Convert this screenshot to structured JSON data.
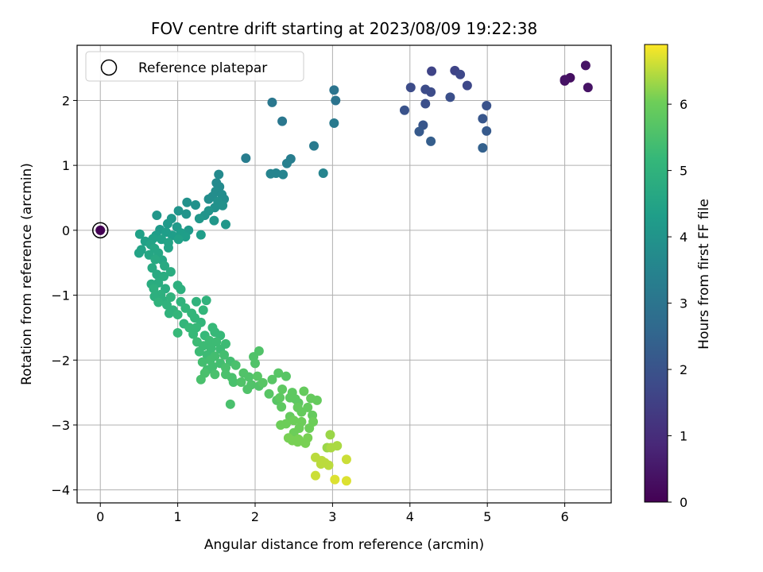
{
  "chart_data": {
    "type": "scatter",
    "title": "FOV centre drift starting at 2023/08/09 19:22:38",
    "xlabel": "Angular distance from reference (arcmin)",
    "ylabel": "Rotation from reference (arcmin)",
    "xlim": [
      -0.3,
      6.6
    ],
    "ylim": [
      -4.2,
      2.85
    ],
    "xticks": [
      0,
      1,
      2,
      3,
      4,
      5,
      6
    ],
    "yticks": [
      -4,
      -3,
      -2,
      -1,
      0,
      1,
      2
    ],
    "grid": true,
    "legend": {
      "placement": "top-left",
      "entries": [
        "Reference platepar"
      ]
    },
    "colorbar": {
      "label": "Hours from first FF file",
      "range": [
        0,
        6.9
      ],
      "ticks": [
        0,
        1,
        2,
        3,
        4,
        5,
        6
      ],
      "colormap": "viridis"
    },
    "reference_point": {
      "x": 0,
      "y": 0,
      "t": 0
    },
    "series": [
      {
        "points": [
          [
            6.0,
            2.3,
            0.3
          ],
          [
            6.07,
            2.35,
            0.3
          ],
          [
            6.27,
            2.54,
            0.4
          ],
          [
            6.3,
            2.2,
            0.4
          ],
          [
            6.0,
            2.32,
            0.4
          ],
          [
            4.28,
            2.45,
            1.6
          ],
          [
            4.58,
            2.46,
            1.6
          ],
          [
            4.65,
            2.4,
            1.7
          ],
          [
            4.74,
            2.23,
            1.7
          ],
          [
            4.01,
            2.2,
            1.8
          ],
          [
            4.2,
            2.17,
            1.8
          ],
          [
            4.27,
            2.13,
            1.8
          ],
          [
            4.52,
            2.05,
            1.9
          ],
          [
            4.2,
            1.95,
            1.9
          ],
          [
            4.99,
            1.92,
            2.0
          ],
          [
            3.93,
            1.85,
            2.0
          ],
          [
            4.94,
            1.72,
            2.1
          ],
          [
            4.17,
            1.62,
            2.1
          ],
          [
            4.12,
            1.52,
            2.2
          ],
          [
            4.99,
            1.53,
            2.2
          ],
          [
            4.27,
            1.37,
            2.3
          ],
          [
            4.94,
            1.27,
            2.4
          ],
          [
            3.02,
            2.16,
            3.0
          ],
          [
            3.04,
            2.0,
            3.0
          ],
          [
            2.22,
            1.97,
            3.1
          ],
          [
            2.35,
            1.68,
            3.1
          ],
          [
            3.02,
            1.65,
            3.2
          ],
          [
            2.76,
            1.3,
            3.2
          ],
          [
            1.88,
            1.11,
            3.3
          ],
          [
            2.46,
            1.1,
            3.3
          ],
          [
            2.41,
            1.03,
            3.4
          ],
          [
            2.88,
            0.88,
            3.5
          ],
          [
            2.2,
            0.87,
            3.5
          ],
          [
            2.27,
            0.88,
            3.5
          ],
          [
            2.36,
            0.86,
            3.5
          ],
          [
            1.53,
            0.86,
            3.7
          ],
          [
            1.5,
            0.73,
            3.7
          ],
          [
            1.54,
            0.67,
            3.7
          ],
          [
            1.49,
            0.6,
            3.8
          ],
          [
            1.57,
            0.55,
            3.8
          ],
          [
            1.45,
            0.52,
            3.8
          ],
          [
            1.4,
            0.48,
            3.8
          ],
          [
            1.6,
            0.48,
            3.8
          ],
          [
            1.52,
            0.44,
            3.9
          ],
          [
            1.12,
            0.43,
            3.9
          ],
          [
            1.23,
            0.39,
            3.9
          ],
          [
            1.58,
            0.38,
            3.9
          ],
          [
            1.48,
            0.35,
            3.9
          ],
          [
            1.4,
            0.3,
            4.0
          ],
          [
            1.01,
            0.3,
            4.0
          ],
          [
            1.11,
            0.25,
            4.0
          ],
          [
            1.35,
            0.23,
            4.0
          ],
          [
            0.73,
            0.23,
            4.1
          ],
          [
            1.28,
            0.18,
            4.1
          ],
          [
            1.47,
            0.15,
            4.1
          ],
          [
            1.62,
            0.09,
            4.1
          ],
          [
            0.92,
            0.18,
            4.1
          ],
          [
            0.87,
            0.1,
            4.2
          ],
          [
            0.99,
            0.05,
            4.2
          ],
          [
            1.14,
            0.0,
            4.2
          ],
          [
            0.77,
            0.01,
            4.2
          ],
          [
            0.85,
            -0.03,
            4.3
          ],
          [
            1.04,
            -0.04,
            4.3
          ],
          [
            0.93,
            -0.08,
            4.3
          ],
          [
            1.3,
            -0.07,
            4.3
          ],
          [
            1.1,
            -0.1,
            4.3
          ],
          [
            0.72,
            -0.08,
            4.3
          ],
          [
            1.01,
            -0.14,
            4.4
          ],
          [
            0.51,
            -0.06,
            4.4
          ],
          [
            0.68,
            -0.13,
            4.4
          ],
          [
            0.79,
            -0.14,
            4.4
          ],
          [
            0.58,
            -0.17,
            4.4
          ],
          [
            0.88,
            -0.19,
            4.5
          ],
          [
            0.65,
            -0.22,
            4.5
          ],
          [
            0.88,
            -0.27,
            4.5
          ],
          [
            0.53,
            -0.3,
            4.5
          ],
          [
            0.5,
            -0.35,
            4.5
          ],
          [
            0.7,
            -0.28,
            4.6
          ],
          [
            0.63,
            -0.38,
            4.6
          ],
          [
            0.75,
            -0.35,
            4.6
          ],
          [
            0.8,
            -0.46,
            4.6
          ],
          [
            0.71,
            -0.45,
            4.7
          ],
          [
            0.83,
            -0.55,
            4.7
          ],
          [
            0.67,
            -0.58,
            4.7
          ],
          [
            0.73,
            -0.68,
            4.7
          ],
          [
            0.82,
            -0.71,
            4.8
          ],
          [
            0.91,
            -0.64,
            4.8
          ],
          [
            0.66,
            -0.83,
            4.8
          ],
          [
            0.75,
            -0.81,
            4.8
          ],
          [
            0.84,
            -0.9,
            4.8
          ],
          [
            0.69,
            -0.9,
            4.9
          ],
          [
            0.78,
            -0.99,
            4.9
          ],
          [
            1.0,
            -0.85,
            4.9
          ],
          [
            1.04,
            -0.91,
            4.9
          ],
          [
            0.7,
            -1.02,
            4.9
          ],
          [
            0.8,
            -1.07,
            4.9
          ],
          [
            0.91,
            -1.03,
            5.0
          ],
          [
            0.75,
            -1.11,
            5.0
          ],
          [
            0.86,
            -1.15,
            5.0
          ],
          [
            1.04,
            -1.1,
            5.0
          ],
          [
            0.94,
            -1.23,
            5.0
          ],
          [
            0.89,
            -1.28,
            5.0
          ],
          [
            1.24,
            -1.1,
            5.0
          ],
          [
            1.37,
            -1.08,
            5.0
          ],
          [
            1.1,
            -1.2,
            5.1
          ],
          [
            1.18,
            -1.28,
            5.1
          ],
          [
            1.33,
            -1.23,
            5.1
          ],
          [
            1.0,
            -1.3,
            5.1
          ],
          [
            1.22,
            -1.35,
            5.1
          ],
          [
            1.3,
            -1.42,
            5.1
          ],
          [
            1.08,
            -1.44,
            5.1
          ],
          [
            1.15,
            -1.5,
            5.2
          ],
          [
            1.24,
            -1.5,
            5.2
          ],
          [
            1.45,
            -1.5,
            5.2
          ],
          [
            1.0,
            -1.58,
            5.2
          ],
          [
            1.2,
            -1.6,
            5.2
          ],
          [
            1.35,
            -1.62,
            5.2
          ],
          [
            1.48,
            -1.57,
            5.2
          ],
          [
            1.55,
            -1.62,
            5.2
          ],
          [
            1.41,
            -1.7,
            5.3
          ],
          [
            1.25,
            -1.72,
            5.3
          ],
          [
            1.5,
            -1.72,
            5.3
          ],
          [
            1.62,
            -1.75,
            5.3
          ],
          [
            1.33,
            -1.78,
            5.3
          ],
          [
            1.43,
            -1.82,
            5.3
          ],
          [
            1.55,
            -1.83,
            5.3
          ],
          [
            1.28,
            -1.87,
            5.3
          ],
          [
            1.38,
            -1.92,
            5.3
          ],
          [
            1.48,
            -1.94,
            5.4
          ],
          [
            1.6,
            -1.92,
            5.4
          ],
          [
            1.42,
            -2.0,
            5.4
          ],
          [
            1.32,
            -2.03,
            5.4
          ],
          [
            1.55,
            -2.05,
            5.4
          ],
          [
            1.68,
            -2.02,
            5.4
          ],
          [
            1.45,
            -2.1,
            5.4
          ],
          [
            1.38,
            -2.15,
            5.4
          ],
          [
            1.62,
            -2.12,
            5.5
          ],
          [
            1.75,
            -2.08,
            5.5
          ],
          [
            1.35,
            -2.2,
            5.5
          ],
          [
            1.48,
            -2.22,
            5.5
          ],
          [
            1.3,
            -2.3,
            5.5
          ],
          [
            1.7,
            -2.27,
            5.5
          ],
          [
            1.62,
            -2.22,
            5.5
          ],
          [
            1.72,
            -2.34,
            5.5
          ],
          [
            1.68,
            -2.68,
            5.5
          ],
          [
            1.85,
            -2.2,
            5.6
          ],
          [
            1.92,
            -2.26,
            5.6
          ],
          [
            1.98,
            -1.95,
            5.6
          ],
          [
            2.05,
            -1.86,
            5.6
          ],
          [
            2.0,
            -2.05,
            5.6
          ],
          [
            1.82,
            -2.34,
            5.6
          ],
          [
            1.95,
            -2.38,
            5.6
          ],
          [
            2.05,
            -2.4,
            5.6
          ],
          [
            1.9,
            -2.45,
            5.6
          ],
          [
            2.1,
            -2.35,
            5.7
          ],
          [
            2.03,
            -2.25,
            5.7
          ],
          [
            2.22,
            -2.3,
            5.7
          ],
          [
            2.18,
            -2.52,
            5.7
          ],
          [
            2.28,
            -2.62,
            5.7
          ],
          [
            2.3,
            -2.2,
            5.7
          ],
          [
            2.4,
            -2.25,
            5.7
          ],
          [
            2.35,
            -2.45,
            5.8
          ],
          [
            2.32,
            -2.58,
            5.8
          ],
          [
            2.48,
            -2.5,
            5.8
          ],
          [
            2.45,
            -2.58,
            5.8
          ],
          [
            2.52,
            -2.6,
            5.8
          ],
          [
            2.56,
            -2.66,
            5.8
          ],
          [
            2.34,
            -2.72,
            5.8
          ],
          [
            2.55,
            -2.73,
            5.9
          ],
          [
            2.63,
            -2.48,
            5.9
          ],
          [
            2.72,
            -2.59,
            5.9
          ],
          [
            2.8,
            -2.62,
            5.9
          ],
          [
            2.6,
            -2.8,
            5.9
          ],
          [
            2.68,
            -2.73,
            5.9
          ],
          [
            2.74,
            -2.85,
            5.9
          ],
          [
            2.45,
            -2.87,
            5.9
          ],
          [
            2.5,
            -2.93,
            6.0
          ],
          [
            2.33,
            -3.0,
            6.0
          ],
          [
            2.4,
            -2.98,
            6.0
          ],
          [
            2.6,
            -2.95,
            6.0
          ],
          [
            2.75,
            -2.95,
            6.0
          ],
          [
            2.57,
            -3.05,
            6.0
          ],
          [
            2.7,
            -3.05,
            6.0
          ],
          [
            2.5,
            -3.12,
            6.0
          ],
          [
            2.43,
            -3.2,
            6.1
          ],
          [
            2.48,
            -3.24,
            6.1
          ],
          [
            2.55,
            -3.26,
            6.1
          ],
          [
            2.65,
            -3.28,
            6.1
          ],
          [
            2.68,
            -3.2,
            6.1
          ],
          [
            2.56,
            -3.22,
            6.1
          ],
          [
            2.97,
            -3.15,
            6.3
          ],
          [
            2.93,
            -3.35,
            6.3
          ],
          [
            3.06,
            -3.32,
            6.4
          ],
          [
            2.98,
            -3.35,
            6.4
          ],
          [
            2.78,
            -3.5,
            6.5
          ],
          [
            2.86,
            -3.55,
            6.5
          ],
          [
            2.9,
            -3.58,
            6.5
          ],
          [
            2.95,
            -3.62,
            6.5
          ],
          [
            2.85,
            -3.6,
            6.5
          ],
          [
            3.18,
            -3.53,
            6.6
          ],
          [
            2.78,
            -3.78,
            6.6
          ],
          [
            3.03,
            -3.84,
            6.7
          ],
          [
            3.18,
            -3.86,
            6.7
          ]
        ]
      }
    ]
  }
}
